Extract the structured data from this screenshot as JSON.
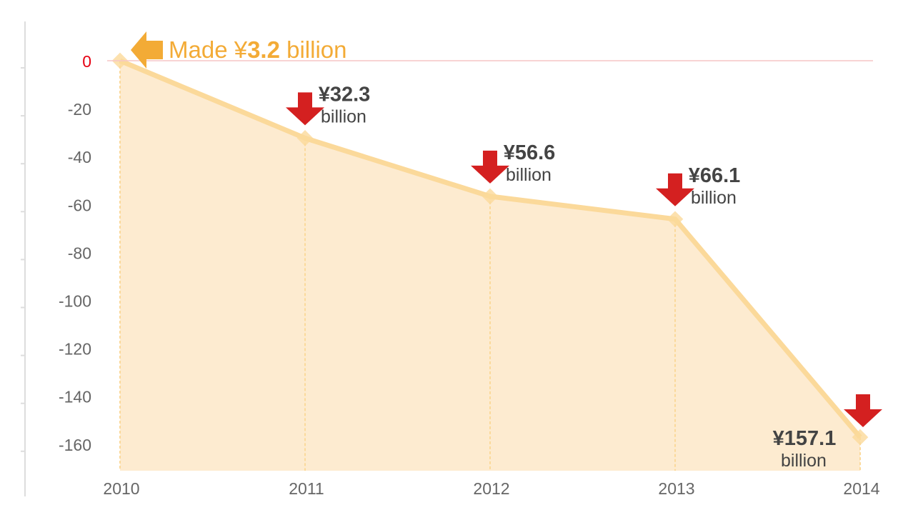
{
  "chart_data": {
    "type": "area",
    "title": "",
    "xlabel": "",
    "ylabel": "",
    "categories": [
      "2010",
      "2011",
      "2012",
      "2013",
      "2014"
    ],
    "values": [
      3.2,
      -32.3,
      -56.6,
      -66.1,
      -157.1
    ],
    "ylim": [
      -171,
      16
    ],
    "yticks": [
      0,
      -20,
      -40,
      -60,
      -80,
      -100,
      -120,
      -140,
      -160
    ],
    "grid": false,
    "annotations": [
      {
        "category": "2010",
        "direction": "left",
        "prefix": "Made ¥",
        "amount": "3.2",
        "suffix": " billion"
      },
      {
        "category": "2011",
        "direction": "down",
        "amount": "¥32.3",
        "unit": "billion"
      },
      {
        "category": "2012",
        "direction": "down",
        "amount": "¥56.6",
        "unit": "billion"
      },
      {
        "category": "2013",
        "direction": "down",
        "amount": "¥66.1",
        "unit": "billion"
      },
      {
        "category": "2014",
        "direction": "down",
        "amount": "¥157.1",
        "unit": "billion"
      }
    ],
    "colors": {
      "fill": "#fdebd0",
      "line": "#fbd99a",
      "zero_line": "#f6c6c6",
      "zero_label": "#e60012",
      "tick_label": "#666666",
      "down_arrow": "#d42020",
      "up_arrow": "#f3ab36",
      "annotation_text": "#444444"
    }
  }
}
